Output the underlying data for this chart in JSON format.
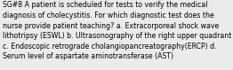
{
  "lines": [
    "SG#8 A patient is scheduled for tests to verify the medical",
    "diagnosis of cholecystitis. For which diagnostic test does the",
    "nurse provide patient teaching? a. Extracorporeal shock wave",
    "lithotripsy (ESWL) b. Ultrasonography of the right upper quadrant",
    "c. Endoscopic retrograde cholangiopancreatography(ERCP) d.",
    "Serum level of aspartate aminotransferase (AST)"
  ],
  "background_color": "#ebebeb",
  "text_color": "#000000",
  "font_size": 5.55,
  "fig_width": 2.62,
  "fig_height": 0.79,
  "dpi": 100
}
